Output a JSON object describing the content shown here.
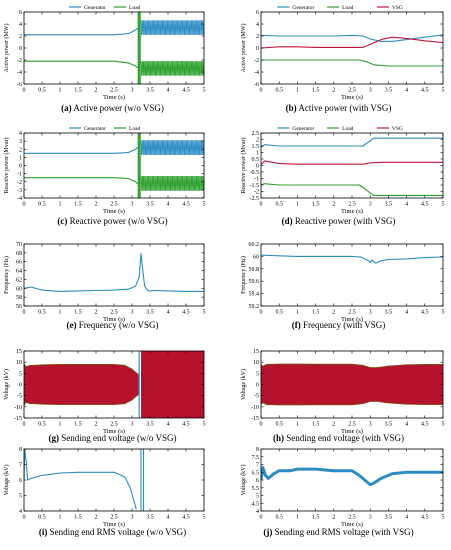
{
  "colors": {
    "generator": "#2b8cc4",
    "load": "#2ca02c",
    "vsg": "#c0143c",
    "voltage_fill": "#b5122e",
    "axis": "#000000"
  },
  "chart_data": [
    {
      "id": "a",
      "type": "line",
      "caption_label": "(a)",
      "caption_text": "Active power (w/o VSG)",
      "xlabel": "Time (s)",
      "ylabel": "Active power (MW)",
      "xlim": [
        0,
        5
      ],
      "ylim": [
        -6,
        6
      ],
      "xticks": [
        0,
        0.5,
        1,
        1.5,
        2,
        2.5,
        3,
        3.5,
        4,
        4.5,
        5
      ],
      "xtick_labels": [
        "0",
        "0.5",
        "1",
        "1.5",
        "2",
        "2.5",
        "3",
        "3.5",
        "4",
        "4.5",
        "5"
      ],
      "yticks": [
        -6,
        -4,
        -2,
        0,
        2,
        4,
        6
      ],
      "ytick_labels": [
        "-6",
        "-4",
        "-2",
        "0",
        "2",
        "4",
        "6"
      ],
      "legend": [
        "Generator",
        "Load"
      ],
      "legend_position": "top",
      "series": [
        {
          "name": "Generator",
          "color_key": "generator",
          "x": [
            0,
            2.5,
            2.9,
            3.1,
            3.2
          ],
          "y": [
            2.2,
            2.2,
            2.4,
            3.0,
            3.5
          ],
          "band": {
            "x0": 3.25,
            "x1": 5,
            "y0": 2.2,
            "y1": 4.6
          }
        },
        {
          "name": "Load",
          "color_key": "load",
          "x": [
            0,
            2.5,
            2.9,
            3.1,
            3.2
          ],
          "y": [
            -2.2,
            -2.2,
            -2.5,
            -3.0,
            -3.5
          ],
          "band": {
            "x0": 3.25,
            "x1": 5,
            "y0": -4.6,
            "y1": -2.2
          },
          "spike": {
            "x": [
              3.18,
              3.22
            ],
            "y0": -6,
            "y1": 6
          }
        }
      ]
    },
    {
      "id": "b",
      "type": "line",
      "caption_label": "(b)",
      "caption_text": "Active power (with VSG)",
      "xlabel": "Time (s)",
      "ylabel": "Active power (MW)",
      "xlim": [
        0,
        5
      ],
      "ylim": [
        -6,
        6
      ],
      "xticks": [
        0,
        0.5,
        1,
        1.5,
        2,
        2.5,
        3,
        3.5,
        4,
        4.5,
        5
      ],
      "xtick_labels": [
        "0",
        "0.5",
        "1",
        "1.5",
        "2",
        "2.5",
        "3",
        "3.5",
        "4",
        "4.5",
        "5"
      ],
      "yticks": [
        -6,
        -4,
        -2,
        0,
        2,
        4,
        6
      ],
      "ytick_labels": [
        "-6",
        "-4",
        "-2",
        "0",
        "2",
        "4",
        "6"
      ],
      "legend": [
        "Generator",
        "Load",
        "VSG"
      ],
      "legend_position": "top",
      "series": [
        {
          "name": "Generator",
          "color_key": "generator",
          "x": [
            0,
            0.5,
            1,
            1.5,
            2,
            2.5,
            2.8,
            3.0,
            3.3,
            3.6,
            4,
            4.5,
            5
          ],
          "y": [
            2.1,
            2.0,
            2.0,
            2.0,
            2.0,
            2.1,
            2.0,
            1.5,
            1.1,
            1.1,
            1.4,
            1.8,
            2.2
          ]
        },
        {
          "name": "Load",
          "color_key": "load",
          "x": [
            0,
            1,
            2,
            2.7,
            2.9,
            3.1,
            3.5,
            4,
            5
          ],
          "y": [
            -2.0,
            -2.0,
            -2.0,
            -2.0,
            -2.3,
            -2.8,
            -3.0,
            -3.0,
            -3.0
          ]
        },
        {
          "name": "VSG",
          "color_key": "vsg",
          "x": [
            0,
            0.5,
            1,
            1.5,
            2,
            2.5,
            2.8,
            3.0,
            3.3,
            3.6,
            4,
            4.5,
            5
          ],
          "y": [
            0.0,
            0.2,
            0.2,
            0.1,
            0.1,
            0.1,
            0.1,
            0.6,
            1.4,
            1.8,
            1.6,
            1.2,
            0.9
          ]
        }
      ]
    },
    {
      "id": "c",
      "type": "line",
      "caption_label": "(c)",
      "caption_text": "Reactive power (w/o VSG)",
      "xlabel": "Time (s)",
      "ylabel": "Reactive power (Mvar)",
      "xlim": [
        0,
        5
      ],
      "ylim": [
        -4,
        4
      ],
      "xticks": [
        0,
        0.5,
        1,
        1.5,
        2,
        2.5,
        3,
        3.5,
        4,
        4.5,
        5
      ],
      "xtick_labels": [
        "0",
        "0.5",
        "1",
        "1.5",
        "2",
        "2.5",
        "3",
        "3.5",
        "4",
        "4.5",
        "5"
      ],
      "yticks": [
        -4,
        -3,
        -2,
        -1,
        0,
        1,
        2,
        3,
        4
      ],
      "ytick_labels": [
        "-4",
        "-3",
        "-2",
        "-1",
        "0",
        "1",
        "2",
        "3",
        "4"
      ],
      "legend": [
        "Generator",
        "Load"
      ],
      "legend_position": "top",
      "series": [
        {
          "name": "Generator",
          "color_key": "generator",
          "x": [
            0,
            2.5,
            2.9,
            3.1,
            3.2
          ],
          "y": [
            1.5,
            1.5,
            1.6,
            2.0,
            2.4
          ],
          "band": {
            "x0": 3.25,
            "x1": 5,
            "y0": 1.3,
            "y1": 3.1
          }
        },
        {
          "name": "Load",
          "color_key": "load",
          "x": [
            0,
            2.5,
            2.9,
            3.1,
            3.2
          ],
          "y": [
            -1.5,
            -1.5,
            -1.6,
            -2.0,
            -2.4
          ],
          "band": {
            "x0": 3.25,
            "x1": 5,
            "y0": -3.1,
            "y1": -1.3
          },
          "spike": {
            "x": [
              3.18,
              3.22
            ],
            "y0": -4,
            "y1": 4
          }
        }
      ]
    },
    {
      "id": "d",
      "type": "line",
      "caption_label": "(d)",
      "caption_text": "Reactive power (with VSG)",
      "xlabel": "Time (s)",
      "ylabel": "Reactive power (Mvar)",
      "xlim": [
        0,
        5
      ],
      "ylim": [
        -2.5,
        2.5
      ],
      "xticks": [
        0,
        0.5,
        1,
        1.5,
        2,
        2.5,
        3,
        3.5,
        4,
        4.5,
        5
      ],
      "xtick_labels": [
        "0",
        "0.5",
        "1",
        "1.5",
        "2",
        "2.5",
        "3",
        "3.5",
        "4",
        "4.5",
        "5"
      ],
      "yticks": [
        -2.5,
        -2,
        -1.5,
        -1,
        -0.5,
        0,
        0.5,
        1,
        1.5,
        2,
        2.5
      ],
      "ytick_labels": [
        "-2.5",
        "-2",
        "-1.5",
        "-1",
        "-0.5",
        "0",
        "0.5",
        "1",
        "1.5",
        "2",
        "2.5"
      ],
      "legend": [
        "Generator",
        "Load",
        "VSG"
      ],
      "legend_position": "top",
      "series": [
        {
          "name": "Generator",
          "color_key": "generator",
          "x": [
            0,
            0.1,
            0.5,
            1,
            1.5,
            2,
            2.5,
            2.8,
            2.95,
            3.1,
            3.5,
            4,
            5
          ],
          "y": [
            1.4,
            1.6,
            1.5,
            1.5,
            1.5,
            1.5,
            1.5,
            1.5,
            1.8,
            2.1,
            2.1,
            2.1,
            2.1
          ]
        },
        {
          "name": "Load",
          "color_key": "load",
          "x": [
            0,
            0.1,
            0.5,
            1,
            2,
            2.7,
            2.9,
            3.1,
            3.5,
            4,
            5
          ],
          "y": [
            -1.5,
            -1.4,
            -1.5,
            -1.5,
            -1.5,
            -1.5,
            -1.9,
            -2.3,
            -2.3,
            -2.3,
            -2.3
          ]
        },
        {
          "name": "VSG",
          "color_key": "vsg",
          "x": [
            0,
            0.1,
            0.5,
            1,
            1.5,
            2,
            2.5,
            2.8,
            3.0,
            3.3,
            4,
            5
          ],
          "y": [
            0.05,
            0.35,
            0.15,
            0.1,
            0.1,
            0.1,
            0.1,
            0.1,
            0.2,
            0.25,
            0.25,
            0.25
          ]
        }
      ]
    },
    {
      "id": "e",
      "type": "line",
      "caption_label": "(e)",
      "caption_text": "Frequency (w/o VSG)",
      "xlabel": "Time (s)",
      "ylabel": "Frequency (Hz)",
      "xlim": [
        0,
        5
      ],
      "ylim": [
        56,
        70
      ],
      "xticks": [
        0,
        0.5,
        1,
        1.5,
        2,
        2.5,
        3,
        3.5,
        4,
        4.5,
        5
      ],
      "xtick_labels": [
        "0",
        "0.5",
        "1",
        "1.5",
        "2",
        "2.5",
        "3",
        "3.5",
        "4",
        "4.5",
        "5"
      ],
      "yticks": [
        56,
        58,
        60,
        62,
        64,
        66,
        68,
        70
      ],
      "ytick_labels": [
        "56",
        "58",
        "60",
        "62",
        "64",
        "66",
        "68",
        "70"
      ],
      "legend": [],
      "legend_position": "none",
      "series": [
        {
          "name": "",
          "color_key": "generator",
          "x": [
            0,
            0.2,
            0.5,
            1,
            1.5,
            2,
            2.5,
            2.9,
            3.1,
            3.2,
            3.25,
            3.3,
            3.35,
            3.45,
            3.6,
            4,
            4.5,
            5
          ],
          "y": [
            60.0,
            60.3,
            59.6,
            59.3,
            59.4,
            59.5,
            59.6,
            59.8,
            60.5,
            62.5,
            67.8,
            64.0,
            60.5,
            59.4,
            59.5,
            59.4,
            59.3,
            59.3
          ]
        }
      ]
    },
    {
      "id": "f",
      "type": "line",
      "caption_label": "(f)",
      "caption_text": "Frequency (with VSG)",
      "xlabel": "Time (s)",
      "ylabel": "Frequency (Hz)",
      "xlim": [
        0,
        5
      ],
      "ylim": [
        59.2,
        60.2
      ],
      "xticks": [
        0,
        0.5,
        1,
        1.5,
        2,
        2.5,
        3,
        3.5,
        4,
        4.5,
        5
      ],
      "xtick_labels": [
        "0",
        "0.5",
        "1",
        "1.5",
        "2",
        "2.5",
        "3",
        "3.5",
        "4",
        "4.5",
        "5"
      ],
      "yticks": [
        59.2,
        59.4,
        59.6,
        59.8,
        60,
        60.2
      ],
      "ytick_labels": [
        "59.2",
        "59.4",
        "59.6",
        "59.8",
        "60",
        "60.2"
      ],
      "legend": [],
      "legend_position": "none",
      "series": [
        {
          "name": "",
          "color_key": "generator",
          "x": [
            0,
            0.5,
            1,
            1.5,
            2,
            2.5,
            2.75,
            2.85,
            2.95,
            3.0,
            3.05,
            3.15,
            3.3,
            3.5,
            4,
            4.5,
            5
          ],
          "y": [
            60.02,
            60.01,
            60.0,
            60.0,
            60.0,
            60.0,
            59.99,
            59.96,
            59.93,
            59.9,
            59.94,
            59.89,
            59.93,
            59.95,
            59.96,
            59.98,
            59.99
          ]
        }
      ]
    },
    {
      "id": "g",
      "type": "area",
      "caption_label": "(g)",
      "caption_text": "Sending end voltage (w/o VSG)",
      "xlabel": "Time (s)",
      "ylabel": "Voltage (kV)",
      "xlim": [
        0,
        5
      ],
      "ylim": [
        -15,
        15
      ],
      "xticks": [
        0,
        0.5,
        1,
        1.5,
        2,
        2.5,
        3,
        3.5,
        4,
        4.5,
        5
      ],
      "xtick_labels": [
        "0",
        "0.5",
        "1",
        "1.5",
        "2",
        "2.5",
        "3",
        "3.5",
        "4",
        "4.5",
        "5"
      ],
      "yticks": [
        -15,
        -10,
        -5,
        0,
        5,
        10,
        15
      ],
      "ytick_labels": [
        "-15",
        "-10",
        "-5",
        "0",
        "5",
        "10",
        "15"
      ],
      "legend": [],
      "legend_position": "none",
      "envelope": {
        "x": [
          0,
          0.05,
          0.15,
          0.5,
          1,
          1.5,
          2,
          2.5,
          2.8,
          3.0,
          3.1,
          3.18
        ],
        "upper": [
          9.5,
          8.0,
          8.5,
          8.8,
          9.0,
          9.0,
          9.0,
          9.0,
          8.6,
          7.0,
          5.5,
          4.5
        ]
      },
      "block": {
        "x0": 3.25,
        "x1": 5,
        "y0": -15,
        "y1": 15
      },
      "divider_x": 3.2
    },
    {
      "id": "h",
      "type": "area",
      "caption_label": "(h)",
      "caption_text": "Sending end voltage (with VSG)",
      "xlabel": "Time (s)",
      "ylabel": "Voltage (kV)",
      "xlim": [
        0,
        5
      ],
      "ylim": [
        -15,
        15
      ],
      "xticks": [
        0,
        0.5,
        1,
        1.5,
        2,
        2.5,
        3,
        3.5,
        4,
        4.5,
        5
      ],
      "xtick_labels": [
        "0",
        "0.5",
        "1",
        "1.5",
        "2",
        "2.5",
        "3",
        "3.5",
        "4",
        "4.5",
        "5"
      ],
      "yticks": [
        -15,
        -10,
        -5,
        0,
        5,
        10,
        15
      ],
      "ytick_labels": [
        "-15",
        "-10",
        "-5",
        "0",
        "5",
        "10",
        "15"
      ],
      "legend": [],
      "legend_position": "none",
      "envelope": {
        "x": [
          0,
          0.05,
          0.15,
          0.5,
          1,
          1.5,
          2,
          2.5,
          2.8,
          3.0,
          3.2,
          3.5,
          4,
          4.5,
          5
        ],
        "upper": [
          9.0,
          8.2,
          9.0,
          9.2,
          9.2,
          9.1,
          9.1,
          9.1,
          8.6,
          7.6,
          7.6,
          8.3,
          8.8,
          9.0,
          9.0
        ]
      }
    },
    {
      "id": "i",
      "type": "line",
      "caption_label": "(i)",
      "caption_text": "Sending end RMS voltage (w/o VSG)",
      "xlabel": "Time (s)",
      "ylabel": "Voltage (kV)",
      "xlim": [
        0,
        5
      ],
      "ylim": [
        4,
        8
      ],
      "xticks": [
        0,
        0.5,
        1,
        1.5,
        2,
        2.5,
        3,
        3.5,
        4,
        4.5,
        5
      ],
      "xtick_labels": [
        "0",
        "0.5",
        "1",
        "1.5",
        "2",
        "2.5",
        "3",
        "3.5",
        "4",
        "4.5",
        "5"
      ],
      "yticks": [
        4,
        5,
        6,
        7,
        8
      ],
      "ytick_labels": [
        "4",
        "5",
        "6",
        "7",
        "8"
      ],
      "legend": [],
      "legend_position": "none",
      "series": [
        {
          "name": "",
          "color_key": "generator",
          "x": [
            0,
            0.02,
            0.06,
            0.1,
            0.2,
            0.5,
            1,
            1.5,
            2,
            2.5,
            2.8,
            2.95,
            3.05,
            3.12
          ],
          "y": [
            6.0,
            8.0,
            7.2,
            6.0,
            6.1,
            6.3,
            6.45,
            6.5,
            6.5,
            6.5,
            6.2,
            5.5,
            4.7,
            4.1
          ]
        },
        {
          "name": "",
          "color_key": "generator",
          "x": [
            3.25,
            3.25
          ],
          "y": [
            4,
            8
          ]
        },
        {
          "name": "",
          "color_key": "generator",
          "x": [
            3.32,
            3.32
          ],
          "y": [
            4,
            8
          ]
        }
      ]
    },
    {
      "id": "j",
      "type": "line",
      "caption_label": "(j)",
      "caption_text": "Sending end RMS voltage (with VSG)",
      "xlabel": "Time (s)",
      "ylabel": "Voltage (kV)",
      "xlim": [
        0,
        5
      ],
      "ylim": [
        4,
        8
      ],
      "xticks": [
        0,
        0.5,
        1,
        1.5,
        2,
        2.5,
        3,
        3.5,
        4,
        4.5,
        5
      ],
      "xtick_labels": [
        "0",
        "0.5",
        "1",
        "1.5",
        "2",
        "2.5",
        "3",
        "3.5",
        "4",
        "4.5",
        "5"
      ],
      "yticks": [
        4,
        4.5,
        5,
        5.5,
        6,
        6.5,
        7,
        7.5,
        8
      ],
      "ytick_labels": [
        "4",
        "4.5",
        "5",
        "5.5",
        "6",
        "6.5",
        "7",
        "7.5",
        "8"
      ],
      "legend": [],
      "legend_position": "none",
      "series": [
        {
          "name": "",
          "color_key": "generator",
          "thick": true,
          "x": [
            0,
            0.05,
            0.12,
            0.2,
            0.35,
            0.5,
            0.8,
            1,
            1.5,
            2,
            2.5,
            2.7,
            2.85,
            3.0,
            3.1,
            3.3,
            3.6,
            4,
            4.5,
            5
          ],
          "y": [
            6.0,
            6.8,
            6.3,
            6.1,
            6.4,
            6.6,
            6.6,
            6.7,
            6.7,
            6.6,
            6.6,
            6.3,
            6.0,
            5.7,
            5.8,
            6.1,
            6.4,
            6.5,
            6.5,
            6.5
          ]
        }
      ]
    }
  ]
}
